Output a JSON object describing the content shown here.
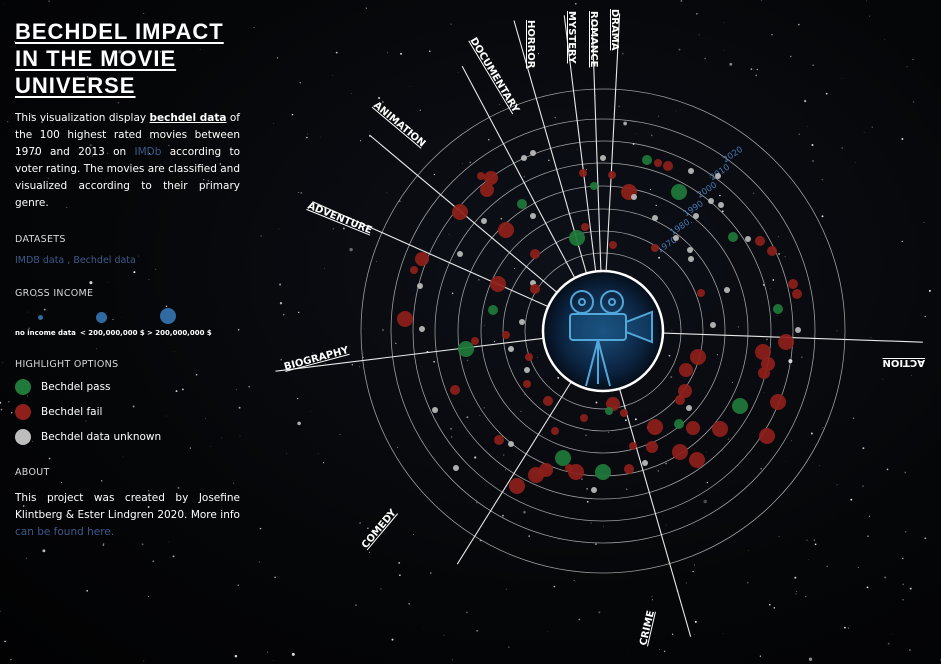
{
  "title": "BECHDEL IMPACT IN THE MOVIE UNIVERSE",
  "intro": {
    "part1": "This visualization display ",
    "link": "bechdel data",
    "part2": " of the 100 highest rated movies between 1970 and 2013 on ",
    "imdb": "IMDb",
    "part3": " according to voter rating. The movies are classified and visualized according to their primary genre."
  },
  "datasets": {
    "heading": "DATASETS",
    "imdb": "IMDB data",
    "sep": " , ",
    "bechdel": "Bechdel data"
  },
  "gross_income": {
    "heading": "GROSS INCOME",
    "no_income": "no income data",
    "small": "< 200,000,000 $",
    "large": "> 200,000,000 $",
    "color": "#2f6aa0"
  },
  "highlight": {
    "heading": "HIGHLIGHT OPTIONS",
    "items": [
      {
        "label": "Bechdel pass",
        "color": "#1f7a3a"
      },
      {
        "label": "Bechdel fail",
        "color": "#8e1f1a"
      },
      {
        "label": "Bechdel data unknown",
        "color": "#bdbdbd"
      }
    ]
  },
  "about": {
    "heading": "ABOUT",
    "text": "This project was created by Josefine Klintberg & Ester Lindgren 2020. More info",
    "link": "can be found here."
  },
  "genres": [
    {
      "name": "DRAMA"
    },
    {
      "name": "ROMANCE"
    },
    {
      "name": "MYSTERY"
    },
    {
      "name": "HORROR"
    },
    {
      "name": "DOCUMENTARY"
    },
    {
      "name": "ANIMATION"
    },
    {
      "name": "ADVENTURE"
    },
    {
      "name": "BIOGRAPHY"
    },
    {
      "name": "COMEDY"
    },
    {
      "name": "CRIME"
    },
    {
      "name": "ACTION"
    }
  ],
  "years": [
    "1970",
    "1980",
    "1990",
    "2000",
    "2010",
    "2020"
  ],
  "center_icon": "movie-camera-icon"
}
